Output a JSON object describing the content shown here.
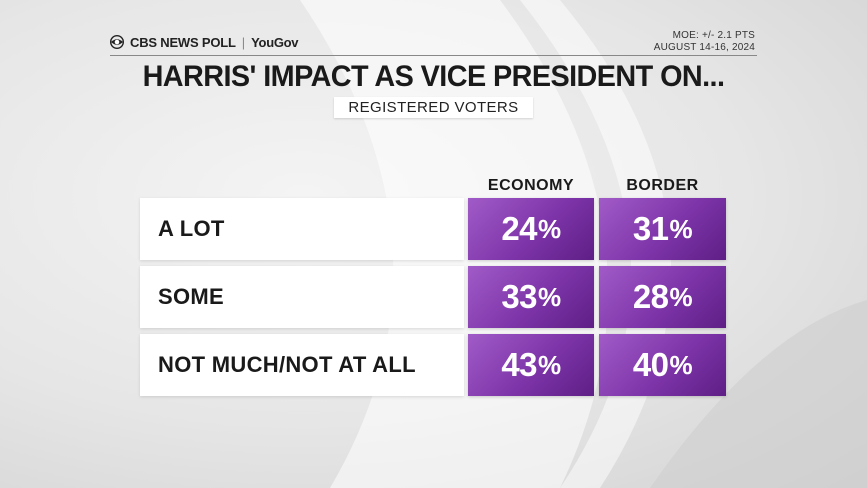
{
  "brand": {
    "cbs": "CBS NEWS POLL",
    "separator": "|",
    "partner": "YouGov"
  },
  "meta": {
    "moe": "MOE: +/- 2.1 PTS",
    "dates": "AUGUST 14-16, 2024"
  },
  "title": "HARRIS' IMPACT AS VICE PRESIDENT ON...",
  "subtitle": "REGISTERED VOTERS",
  "chart_data": {
    "type": "table",
    "title": "HARRIS' IMPACT AS VICE PRESIDENT ON...",
    "subtitle": "REGISTERED VOTERS",
    "unit": "%",
    "columns": [
      "ECONOMY",
      "BORDER"
    ],
    "rows": [
      {
        "label": "A LOT",
        "values": [
          24,
          31
        ]
      },
      {
        "label": "SOME",
        "values": [
          33,
          28
        ]
      },
      {
        "label": "NOT MUCH/NOT AT ALL",
        "values": [
          43,
          40
        ]
      }
    ]
  },
  "colors": {
    "accent": "#7d34a8",
    "accent_light": "#a15bc8",
    "accent_dark": "#5e1f86"
  }
}
